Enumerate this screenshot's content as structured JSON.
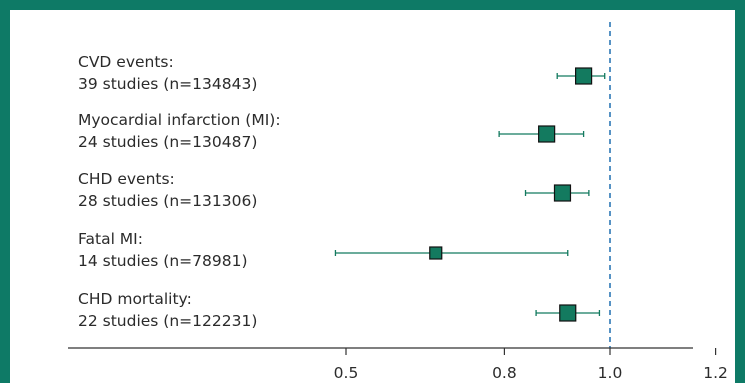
{
  "colors": {
    "frame": "#0e7a66",
    "marker": "#137a5f",
    "marker_stroke": "#111111",
    "reference_line": "#1f6fb0",
    "axis": "#333333",
    "text": "#2b2b2b"
  },
  "chart_data": {
    "type": "forest",
    "title": "",
    "xlabel": "",
    "ylabel": "",
    "xlim": [
      0.3,
      1.25
    ],
    "x_ticks": [
      {
        "value": 0.5,
        "label": "0.5"
      },
      {
        "value": 0.8,
        "label": "0.8"
      },
      {
        "value": 1.0,
        "label": "1.0"
      },
      {
        "value": 1.2,
        "label": "1.2"
      }
    ],
    "reference_value": 1.0,
    "rows": [
      {
        "label_line1": "CVD events:",
        "label_line2": "39 studies (n=134843)",
        "estimate": 0.95,
        "ci_low": 0.9,
        "ci_high": 0.99,
        "weight": "large"
      },
      {
        "label_line1": "Myocardial infarction (MI):",
        "label_line2": "24 studies (n=130487)",
        "estimate": 0.88,
        "ci_low": 0.79,
        "ci_high": 0.95,
        "weight": "large"
      },
      {
        "label_line1": "CHD events:",
        "label_line2": "28 studies (n=131306)",
        "estimate": 0.91,
        "ci_low": 0.84,
        "ci_high": 0.96,
        "weight": "large"
      },
      {
        "label_line1": "Fatal MI:",
        "label_line2": "14 studies (n=78981)",
        "estimate": 0.67,
        "ci_low": 0.48,
        "ci_high": 0.92,
        "weight": "small"
      },
      {
        "label_line1": "CHD mortality:",
        "label_line2": "22 studies (n=122231)",
        "estimate": 0.92,
        "ci_low": 0.86,
        "ci_high": 0.98,
        "weight": "large"
      }
    ]
  }
}
